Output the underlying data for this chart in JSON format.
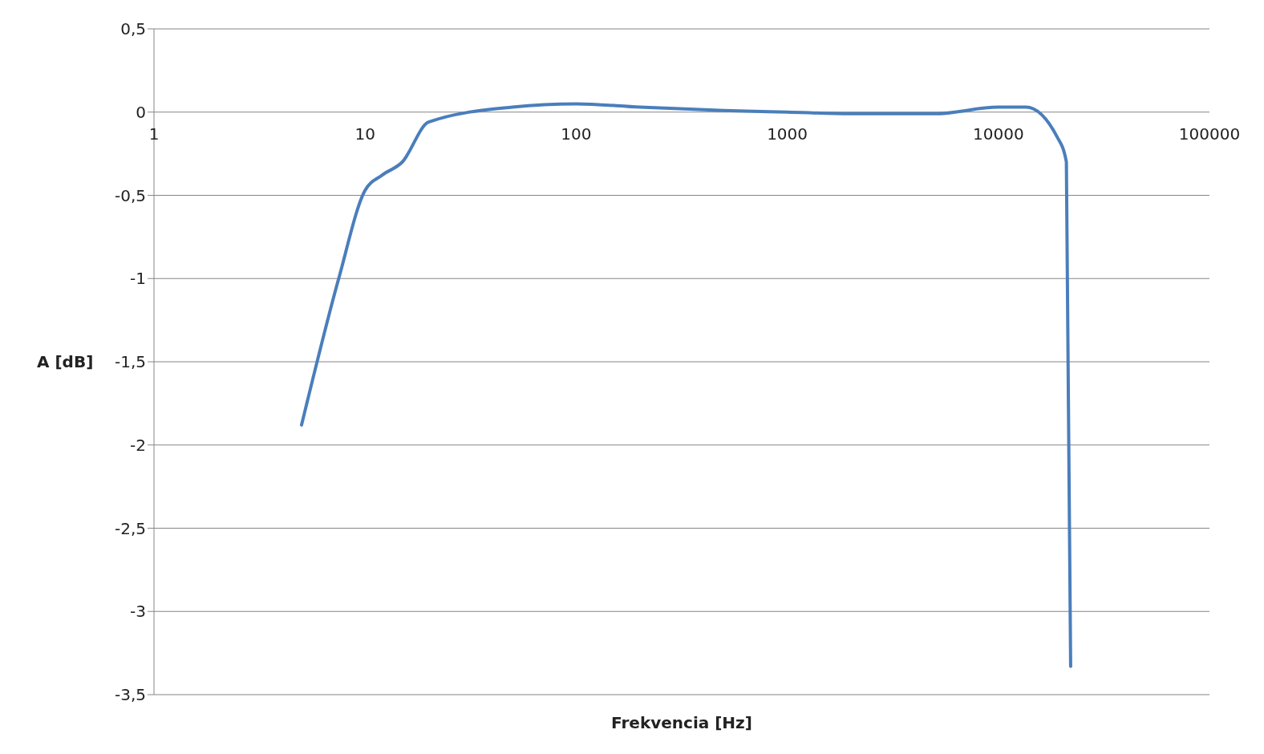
{
  "chart_data": {
    "type": "line",
    "xlabel": "Frekvencia [Hz]",
    "ylabel": "A [dB]",
    "log": "x",
    "x": [
      5,
      7.5,
      10,
      12,
      15,
      20,
      50,
      100,
      200,
      500,
      1000,
      2000,
      5000,
      10000,
      13500,
      19000,
      21000,
      22000
    ],
    "series": [
      {
        "color": "#4a7ebb",
        "values": [
          -1.88,
          -1.0,
          -0.47,
          -0.38,
          -0.3,
          -0.06,
          0.03,
          0.05,
          0.03,
          0.01,
          0,
          -0.01,
          -0.01,
          0.03,
          0.03,
          -0.15,
          -0.3,
          -3.33
        ]
      }
    ],
    "xlim": [
      1,
      100000
    ],
    "xticks": [
      1,
      10,
      100,
      1000,
      10000,
      100000
    ],
    "ylim": [
      -3.5,
      0.5
    ],
    "yticks": [
      {
        "value": 0.5,
        "label": "0,5"
      },
      0,
      {
        "value": -0.5,
        "label": "-0,5"
      },
      -1,
      {
        "value": -1.5,
        "label": "-1,5"
      },
      -2,
      {
        "value": -2.5,
        "label": "-2,5"
      },
      -3,
      {
        "value": -3.5,
        "label": "-3,5"
      }
    ],
    "grid": "y",
    "legend": false,
    "marker": "none",
    "line_style": "solid"
  }
}
